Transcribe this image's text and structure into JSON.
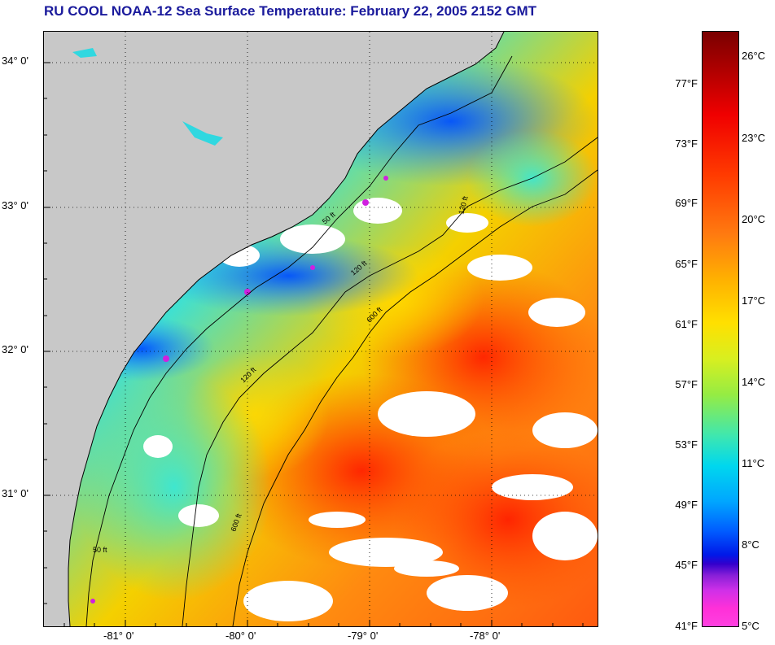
{
  "title": "RU COOL  NOAA-12  Sea Surface Temperature:  February 22, 2005 2152 GMT",
  "map": {
    "latitude_labels": [
      "34° 0'",
      "33° 0'",
      "32° 0'",
      "31° 0'"
    ],
    "longitude_labels": [
      "-81° 0'",
      "-80° 0'",
      "-79° 0'",
      "-78° 0'"
    ],
    "isobath_labels": [
      "50 ft",
      "120 ft",
      "600 ft"
    ],
    "colors": {
      "land": "#c8c8c8",
      "cloud": "#ffffff",
      "coastline": "#000000"
    }
  },
  "colorbar": {
    "fahrenheit_labels": [
      "77°F",
      "73°F",
      "69°F",
      "65°F",
      "61°F",
      "57°F",
      "53°F",
      "49°F",
      "45°F",
      "41°F"
    ],
    "celsius_labels": [
      "26°C",
      "23°C",
      "20°C",
      "17°C",
      "14°C",
      "11°C",
      "8°C",
      "5°C"
    ],
    "celsius_values": [
      26,
      23,
      20,
      17,
      14,
      11,
      8,
      5
    ],
    "fahrenheit_values": [
      77,
      73,
      69,
      65,
      61,
      57,
      53,
      49,
      45,
      41
    ]
  }
}
